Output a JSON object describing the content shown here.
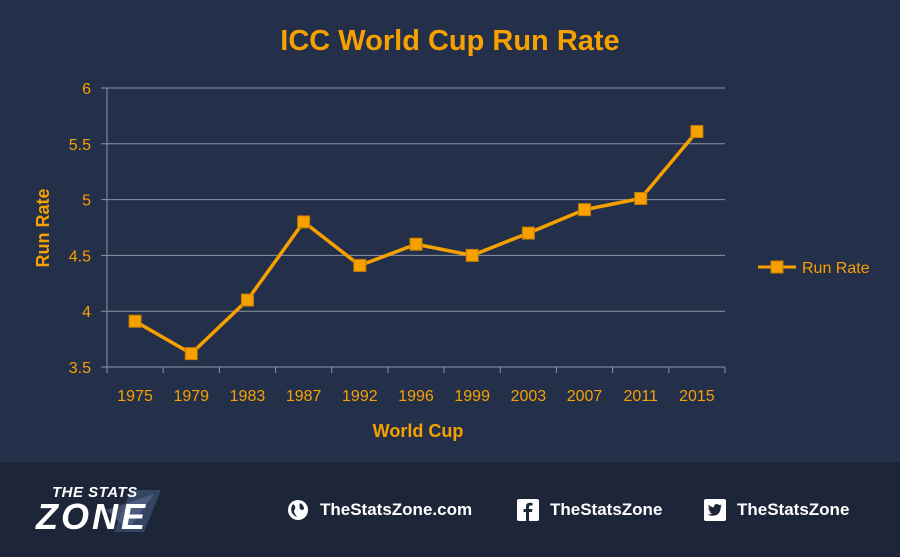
{
  "chart_data": {
    "type": "line",
    "title": "ICC World Cup Run Rate",
    "xlabel": "World Cup",
    "ylabel": "Run Rate",
    "categories": [
      "1975",
      "1979",
      "1983",
      "1987",
      "1992",
      "1996",
      "1999",
      "2003",
      "2007",
      "2011",
      "2015"
    ],
    "series": [
      {
        "name": "Run Rate",
        "values": [
          3.91,
          3.62,
          4.1,
          4.8,
          4.41,
          4.6,
          4.5,
          4.7,
          4.91,
          5.01,
          5.61
        ]
      }
    ],
    "ylim": [
      3.5,
      6
    ],
    "yticks": [
      "3.5",
      "4",
      "4.5",
      "5",
      "5.5",
      "6"
    ],
    "grid": true,
    "legend": "right",
    "colors": {
      "line": "#f7a100",
      "marker": "#f7a100",
      "text": "#f7a100",
      "background": "#243049",
      "grid": "#8b93a6"
    }
  },
  "footer": {
    "logo_top": "THE STATS",
    "logo_bottom": "ZONE",
    "website": "TheStatsZone.com",
    "facebook": "TheStatsZone",
    "twitter": "TheStatsZone",
    "icons": [
      "globe-icon",
      "facebook-icon",
      "twitter-icon"
    ]
  }
}
